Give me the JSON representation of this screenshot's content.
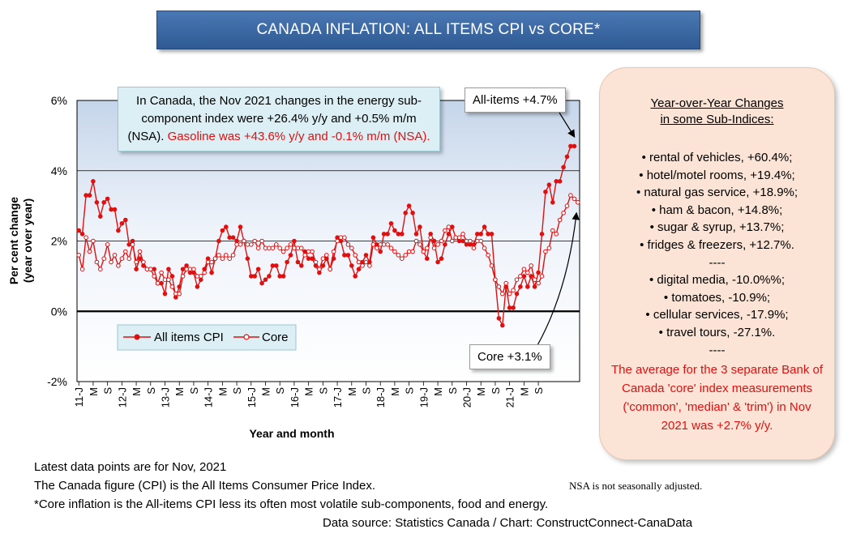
{
  "title": "CANADA INFLATION: ALL ITEMS CPI vs CORE*",
  "chart_data": {
    "type": "line",
    "ylabel": "Per cent change (year over year)",
    "xlabel": "Year and month",
    "ylim": [
      -2,
      6
    ],
    "yticks": [
      "-2%",
      "0%",
      "2%",
      "4%",
      "6%"
    ],
    "xtick_labels": [
      "11-J",
      "M",
      "S",
      "12-J",
      "M",
      "S",
      "13-J",
      "M",
      "S",
      "14-J",
      "M",
      "S",
      "15-J",
      "M",
      "S",
      "16-J",
      "M",
      "S",
      "17-J",
      "M",
      "S",
      "18-J",
      "M",
      "S",
      "19-J",
      "M",
      "S",
      "20-J",
      "M",
      "S",
      "21-J",
      "M",
      "S"
    ],
    "x_start": "2011-01",
    "x_end": "2021-11",
    "legend_position": "bottom-left",
    "series": [
      {
        "name": "All items CPI",
        "color": "#e01010",
        "marker": "filled",
        "values": [
          2.3,
          2.2,
          3.3,
          3.3,
          3.7,
          3.1,
          2.7,
          3.1,
          3.2,
          2.9,
          2.9,
          2.3,
          2.5,
          2.6,
          1.9,
          2.0,
          1.2,
          1.5,
          1.3,
          1.2,
          1.2,
          1.2,
          0.8,
          0.8,
          0.5,
          1.2,
          1.0,
          0.4,
          0.7,
          1.2,
          1.3,
          1.1,
          1.1,
          0.7,
          0.9,
          1.2,
          1.5,
          1.1,
          1.5,
          2.0,
          2.3,
          2.4,
          2.1,
          2.1,
          2.0,
          2.4,
          2.0,
          1.5,
          1.0,
          1.0,
          1.2,
          0.8,
          0.9,
          1.0,
          1.3,
          1.3,
          1.0,
          1.0,
          1.4,
          1.6,
          2.0,
          1.4,
          1.3,
          1.7,
          1.5,
          1.5,
          1.3,
          1.1,
          1.3,
          1.5,
          1.2,
          1.5,
          2.1,
          2.0,
          1.6,
          1.6,
          1.3,
          1.0,
          1.2,
          1.4,
          1.6,
          1.4,
          2.1,
          1.9,
          1.7,
          2.2,
          2.2,
          2.5,
          2.3,
          2.2,
          2.2,
          2.8,
          3.0,
          2.8,
          2.2,
          2.4,
          1.7,
          1.5,
          2.2,
          2.0,
          1.4,
          1.5,
          1.9,
          2.2,
          2.4,
          2.1,
          2.0,
          2.0,
          1.9,
          1.9,
          1.9,
          2.2,
          2.2,
          2.4,
          2.2,
          2.2,
          0.9,
          -0.2,
          -0.4,
          0.7,
          0.1,
          0.1,
          0.5,
          0.7,
          1.0,
          0.7,
          1.0,
          0.7,
          1.1,
          2.2,
          3.4,
          3.6,
          3.1,
          3.7,
          3.7,
          4.1,
          4.4,
          4.7,
          4.7
        ]
      },
      {
        "name": "Core",
        "color": "#e01010",
        "marker": "hollow",
        "values": [
          1.6,
          1.2,
          2.1,
          1.7,
          2.0,
          1.4,
          1.2,
          1.5,
          1.9,
          1.4,
          1.6,
          1.3,
          1.5,
          1.7,
          1.5,
          1.9,
          1.4,
          1.7,
          1.4,
          1.2,
          1.2,
          1.0,
          0.8,
          1.1,
          0.9,
          0.9,
          0.7,
          0.5,
          0.5,
          1.0,
          1.2,
          1.2,
          1.2,
          1.0,
          1.0,
          1.1,
          1.4,
          1.4,
          1.5,
          1.6,
          1.5,
          1.6,
          1.5,
          1.6,
          1.9,
          1.9,
          2.0,
          1.9,
          1.9,
          2.0,
          1.8,
          2.0,
          1.8,
          1.8,
          1.8,
          1.9,
          1.8,
          1.7,
          1.8,
          1.9,
          1.8,
          1.8,
          1.8,
          1.6,
          1.7,
          1.7,
          1.4,
          1.2,
          1.5,
          1.6,
          1.2,
          1.7,
          2.0,
          2.1,
          2.1,
          1.9,
          1.8,
          1.6,
          1.4,
          1.3,
          1.4,
          1.3,
          1.9,
          1.8,
          1.9,
          1.9,
          1.9,
          1.8,
          1.7,
          1.6,
          1.5,
          1.6,
          1.7,
          1.7,
          2.0,
          1.9,
          1.7,
          1.8,
          2.1,
          1.8,
          1.9,
          2.0,
          2.3,
          2.4,
          2.0,
          2.1,
          2.1,
          2.2,
          2.0,
          2.0,
          1.8,
          2.0,
          2.0,
          1.8,
          1.6,
          1.3,
          0.9,
          0.7,
          0.5,
          0.8,
          0.5,
          0.6,
          0.9,
          1.0,
          1.2,
          1.1,
          1.3,
          0.9,
          0.8,
          1.0,
          1.7,
          1.8,
          2.3,
          2.2,
          2.6,
          2.8,
          3.0,
          3.3,
          3.2,
          3.1
        ]
      }
    ]
  },
  "annotation": {
    "text_black": "In Canada, the Nov 2021 changes in the energy sub-component index were +26.4% y/y and +0.5% m/m (NSA). ",
    "text_red": "Gasoline was +43.6% y/y and -0.1% m/m (NSA)."
  },
  "callouts": {
    "all_items": "All-items +4.7%",
    "core": "Core +3.1%"
  },
  "side_panel": {
    "heading_line1": "Year-over-Year Changes",
    "heading_line2": "in some Sub-Indices:",
    "items": [
      "• rental of vehicles, +60.4%;",
      "• hotel/motel rooms, +19.4%;",
      "• natural gas service, +18.9%;",
      "• ham & bacon, +14.8%;",
      "• sugar & syrup, +13.7%;",
      "• fridges & freezers, +12.7%.",
      "----",
      "• digital media, -10.0%%;",
      "• tomatoes, -10.9%;",
      "• cellular services, -17.9%;",
      "• travel tours, -27.1%.",
      "----"
    ],
    "red_note": "The average for the 3 separate Bank of Canada 'core' index measurements ('common', 'median' & 'trim') in Nov 2021 was +2.7% y/y."
  },
  "footnotes": {
    "line1": "Latest data points are for Nov, 2021",
    "line2": "The Canada figure (CPI) is the All Items Consumer Price Index.",
    "nsa": "NSA is not seasonally adjusted.",
    "line3": "*Core inflation is the All-items CPI less its often most volatile sub-components, food and energy.",
    "source": "Data source: Statistics Canada / Chart: ConstructConnect-CanaData"
  },
  "colors": {
    "title_bg": "#3b6aa6",
    "series": "#e01010",
    "annotation_bg": "#dbeff4",
    "side_bg": "#fbe3d6"
  }
}
